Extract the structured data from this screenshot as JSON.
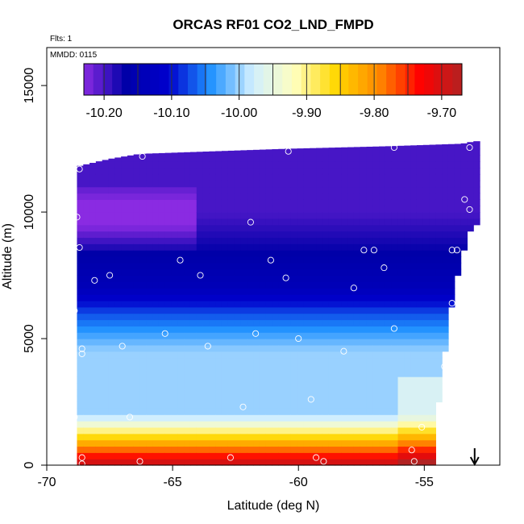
{
  "chart_data": {
    "type": "heatmap",
    "title": "ORCAS RF01 CO2_LND_FMPD",
    "flights_note": "Flts: 1",
    "date_note": "MMDD: 0115",
    "xlabel": "Latitude (deg N)",
    "ylabel": "Altitude (m)",
    "xlim": [
      -70,
      -52
    ],
    "ylim": [
      0,
      16500
    ],
    "x_ticks": [
      -70,
      -65,
      -60,
      -55
    ],
    "x_tick_labels": [
      "-70",
      "-65",
      "-60",
      "-55"
    ],
    "y_ticks": [
      0,
      5000,
      10000,
      15000
    ],
    "y_tick_labels": [
      "0",
      "5000",
      "10000",
      "15000"
    ],
    "colorbar": {
      "min": -10.23,
      "max": -9.67,
      "ticks": [
        -10.2,
        -10.1,
        -10.0,
        -9.9,
        -9.8,
        -9.7
      ],
      "tick_labels": [
        "-10.20",
        "-10.10",
        "-10.00",
        "-9.90",
        "-9.80",
        "-9.70"
      ],
      "colors": [
        "#8a2be2",
        "#0000a8",
        "#0000cd",
        "#1e90ff",
        "#cfeeff",
        "#ffffc0",
        "#ffd700",
        "#ff8c00",
        "#ff0000",
        "#b22222"
      ]
    },
    "field": {
      "lat_min": -68.8,
      "lat_max": -53.0,
      "lat_step": 0.25,
      "alt_step": 250,
      "top_edges": [
        [
          -68.8,
          11800
        ],
        [
          -67.5,
          12100
        ],
        [
          -66.3,
          12300
        ],
        [
          -60.5,
          12500
        ],
        [
          -56.5,
          12600
        ],
        [
          -53.5,
          12700
        ],
        [
          -53.0,
          12800
        ]
      ],
      "bottom_edges": [
        [
          -68.8,
          0
        ],
        [
          -54.6,
          0
        ],
        [
          -54.5,
          1500
        ],
        [
          -54.4,
          3000
        ],
        [
          -54.2,
          4500
        ],
        [
          -54.0,
          6000
        ],
        [
          -53.6,
          8000
        ],
        [
          -53.2,
          9300
        ],
        [
          -53.0,
          9600
        ]
      ]
    },
    "sample_points": [
      {
        "lat": -68.7,
        "alt": 11700
      },
      {
        "lat": -66.2,
        "alt": 12200
      },
      {
        "lat": -60.4,
        "alt": 12400
      },
      {
        "lat": -56.2,
        "alt": 12550
      },
      {
        "lat": -53.2,
        "alt": 12550
      },
      {
        "lat": -68.8,
        "alt": 9800
      },
      {
        "lat": -61.9,
        "alt": 9600
      },
      {
        "lat": -53.4,
        "alt": 10500
      },
      {
        "lat": -53.2,
        "alt": 10100
      },
      {
        "lat": -68.7,
        "alt": 8600
      },
      {
        "lat": -64.7,
        "alt": 8100
      },
      {
        "lat": -61.1,
        "alt": 8100
      },
      {
        "lat": -57.4,
        "alt": 8500
      },
      {
        "lat": -57.0,
        "alt": 8500
      },
      {
        "lat": -53.9,
        "alt": 8500
      },
      {
        "lat": -53.7,
        "alt": 8500
      },
      {
        "lat": -67.5,
        "alt": 7500
      },
      {
        "lat": -63.9,
        "alt": 7500
      },
      {
        "lat": -60.5,
        "alt": 7400
      },
      {
        "lat": -56.6,
        "alt": 7800
      },
      {
        "lat": -68.1,
        "alt": 7300
      },
      {
        "lat": -57.8,
        "alt": 7000
      },
      {
        "lat": -68.9,
        "alt": 6100
      },
      {
        "lat": -53.9,
        "alt": 6400
      },
      {
        "lat": -65.3,
        "alt": 5200
      },
      {
        "lat": -61.7,
        "alt": 5200
      },
      {
        "lat": -56.2,
        "alt": 5400
      },
      {
        "lat": -60.0,
        "alt": 5000
      },
      {
        "lat": -67.0,
        "alt": 4700
      },
      {
        "lat": -63.6,
        "alt": 4700
      },
      {
        "lat": -58.2,
        "alt": 4500
      },
      {
        "lat": -68.6,
        "alt": 4600
      },
      {
        "lat": -68.6,
        "alt": 4400
      },
      {
        "lat": -54.2,
        "alt": 3900
      },
      {
        "lat": -59.5,
        "alt": 2600
      },
      {
        "lat": -66.7,
        "alt": 1900
      },
      {
        "lat": -62.2,
        "alt": 2300
      },
      {
        "lat": -68.9,
        "alt": 1900
      },
      {
        "lat": -55.1,
        "alt": 1500
      },
      {
        "lat": -55.5,
        "alt": 600
      },
      {
        "lat": -68.6,
        "alt": 300
      },
      {
        "lat": -62.7,
        "alt": 300
      },
      {
        "lat": -59.3,
        "alt": 300
      },
      {
        "lat": -66.3,
        "alt": 150
      },
      {
        "lat": -59.0,
        "alt": 150
      },
      {
        "lat": -55.4,
        "alt": 150
      },
      {
        "lat": -68.6,
        "alt": 50
      }
    ],
    "marker": {
      "lat": -53.0,
      "type": "down-arrow"
    }
  }
}
